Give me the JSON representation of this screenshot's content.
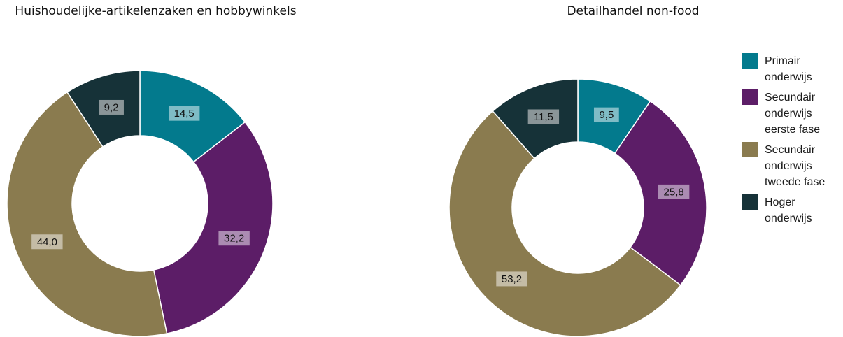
{
  "chart_data": [
    {
      "type": "pie",
      "title": "Huishoudelijke-artikelenzaken en hobbywinkels",
      "categories": [
        "Primair onderwijs",
        "Secundair onderwijs eerste fase",
        "Secundair onderwijs tweede fase",
        "Hoger onderwijs"
      ],
      "values": [
        14.5,
        32.2,
        44.0,
        9.2
      ],
      "value_labels": [
        "14,5",
        "32,2",
        "44,0",
        "9,2"
      ]
    },
    {
      "type": "pie",
      "title": "Detailhandel non-food",
      "categories": [
        "Primair onderwijs",
        "Secundair onderwijs eerste fase",
        "Secundair onderwijs tweede fase",
        "Hoger onderwijs"
      ],
      "values": [
        9.5,
        25.8,
        53.2,
        11.5
      ],
      "value_labels": [
        "9,5",
        "25,8",
        "53,2",
        "11,5"
      ]
    }
  ],
  "legend": {
    "placement": "right",
    "items": [
      {
        "label": "Primair\nonderwijs",
        "color": "#037a8d"
      },
      {
        "label": "Secundair\nonderwijs\neerste fase",
        "color": "#5c1d67"
      },
      {
        "label": "Secundair\nonderwijs\ntweede fase",
        "color": "#8a7b4f"
      },
      {
        "label": "Hoger\nonderwijs",
        "color": "#163238"
      }
    ]
  },
  "label_box_colors": [
    "#7fbcc6",
    "#ab8bb2",
    "#c4bca6",
    "#8a9598"
  ]
}
